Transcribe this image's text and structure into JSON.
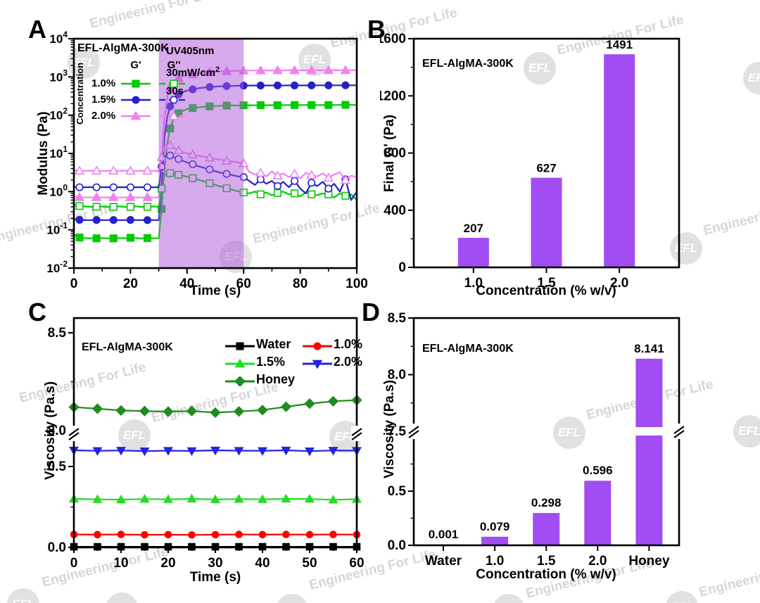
{
  "panel_letters": [
    "A",
    "B",
    "C",
    "D"
  ],
  "watermark": {
    "logo": "EFL",
    "text": "Engineering For Life"
  },
  "chart_data": [
    {
      "id": "A",
      "type": "line",
      "annotation": "EFL-AlgMA-300K",
      "xlabel": "Time (s)",
      "ylabel": "Modulus (Pa)",
      "xlim": [
        0,
        100
      ],
      "xticks": [
        0,
        20,
        40,
        60,
        80,
        100
      ],
      "ylog_exponents": [
        -2,
        -1,
        0,
        1,
        2,
        3,
        4
      ],
      "uv_region": {
        "x0": 30,
        "x1": 60,
        "color": "#AE55D9",
        "lines": [
          "UV405nm",
          "30mW/cm",
          "30s"
        ],
        "sup": "2"
      },
      "legend": {
        "conc_label": "Concentration",
        "col1": "G'",
        "col2": "G''",
        "rows": [
          {
            "label": "1.0%",
            "color": "#00CC00",
            "marker": "square"
          },
          {
            "label": "1.5%",
            "color": "#2222CC",
            "marker": "circle"
          },
          {
            "label": "2.0%",
            "color": "#EE82EE",
            "marker": "triangle"
          }
        ]
      },
      "t": [
        0,
        2,
        4,
        6,
        8,
        10,
        12,
        14,
        16,
        18,
        20,
        22,
        24,
        26,
        28,
        30,
        31,
        32,
        33,
        34,
        35,
        36,
        37,
        38,
        40,
        42,
        44,
        46,
        48,
        50,
        52,
        54,
        56,
        58,
        60,
        62,
        64,
        66,
        68,
        70,
        72,
        74,
        76,
        78,
        80,
        82,
        84,
        86,
        88,
        90,
        92,
        94,
        96,
        98,
        100
      ],
      "series": [
        {
          "name": "G' 1.0%",
          "color": "#00CC00",
          "marker": "square",
          "open": false,
          "v": [
            0.075,
            0.063,
            0.061,
            0.06,
            0.06,
            0.061,
            0.06,
            0.06,
            0.061,
            0.06,
            0.062,
            0.061,
            0.06,
            0.061,
            0.06,
            0.06,
            0.35,
            4,
            18,
            45,
            72,
            95,
            112,
            126,
            143,
            153,
            160,
            166,
            170,
            173,
            176,
            178,
            179,
            180,
            181,
            182,
            181,
            183,
            182,
            183,
            182,
            184,
            183,
            184,
            183,
            185,
            184,
            184,
            185,
            184,
            185,
            185,
            186,
            185,
            185
          ]
        },
        {
          "name": "G' 1.5%",
          "color": "#2222CC",
          "marker": "circle",
          "open": false,
          "v": [
            0.19,
            0.183,
            0.18,
            0.18,
            0.181,
            0.18,
            0.18,
            0.181,
            0.18,
            0.18,
            0.182,
            0.18,
            0.181,
            0.18,
            0.18,
            0.18,
            1.2,
            25,
            90,
            170,
            240,
            300,
            350,
            390,
            440,
            475,
            505,
            525,
            545,
            558,
            568,
            576,
            583,
            588,
            592,
            595,
            597,
            596,
            598,
            597,
            599,
            598,
            600,
            599,
            601,
            600,
            601,
            602,
            601,
            603,
            602,
            603,
            604,
            603,
            604
          ]
        },
        {
          "name": "G' 2.0%",
          "color": "#EE82EE",
          "marker": "triangle",
          "open": false,
          "v": [
            0.75,
            0.71,
            0.7,
            0.7,
            0.71,
            0.7,
            0.7,
            0.71,
            0.7,
            0.7,
            0.71,
            0.7,
            0.7,
            0.71,
            0.7,
            0.7,
            4,
            80,
            300,
            520,
            700,
            830,
            930,
            1000,
            1100,
            1170,
            1230,
            1280,
            1320,
            1355,
            1385,
            1410,
            1430,
            1448,
            1460,
            1468,
            1472,
            1476,
            1480,
            1478,
            1484,
            1482,
            1488,
            1486,
            1490,
            1488,
            1492,
            1490,
            1494,
            1492,
            1495,
            1493,
            1496,
            1494,
            1496
          ]
        },
        {
          "name": "G'' 1.0%",
          "color": "#00CC00",
          "marker": "square",
          "open": true,
          "v": [
            0.45,
            0.42,
            0.41,
            0.4,
            0.4,
            0.41,
            0.4,
            0.4,
            0.41,
            0.4,
            0.4,
            0.41,
            0.4,
            0.4,
            0.41,
            0.4,
            1.2,
            2.6,
            3.1,
            3.05,
            2.95,
            2.85,
            2.75,
            2.65,
            2.45,
            2.25,
            2.05,
            1.85,
            1.65,
            1.5,
            1.35,
            1.22,
            1.12,
            1.02,
            0.95,
            0.9,
            1.0,
            0.85,
            0.95,
            0.8,
            0.92,
            1.0,
            0.85,
            0.9,
            0.75,
            0.95,
            0.85,
            0.8,
            0.9,
            0.85,
            0.7,
            0.9,
            0.78,
            0.85,
            0.6
          ]
        },
        {
          "name": "G'' 1.5%",
          "color": "#2222CC",
          "marker": "circle",
          "open": true,
          "v": [
            1.32,
            1.3,
            1.3,
            1.31,
            1.3,
            1.3,
            1.31,
            1.3,
            1.3,
            1.31,
            1.3,
            1.3,
            1.31,
            1.3,
            1.3,
            1.3,
            4.5,
            8.2,
            9.2,
            8.8,
            8.2,
            7.6,
            7.1,
            6.6,
            5.8,
            5.2,
            4.6,
            4.2,
            3.8,
            3.4,
            3.1,
            2.9,
            2.7,
            2.5,
            2.4,
            1.9,
            1.5,
            2.1,
            1.6,
            1.9,
            1.4,
            1.8,
            1.3,
            1.9,
            1.2,
            0.9,
            1.7,
            1.4,
            1.8,
            1.2,
            1.6,
            1.0,
            2.1,
            0.6,
            1.0
          ]
        },
        {
          "name": "G'' 2.0%",
          "color": "#EE82EE",
          "marker": "triangle",
          "open": true,
          "v": [
            3.6,
            3.5,
            3.5,
            3.52,
            3.5,
            3.5,
            3.51,
            3.5,
            3.5,
            3.52,
            3.5,
            3.5,
            3.51,
            3.5,
            3.5,
            3.5,
            8,
            15,
            17.5,
            16.5,
            14.5,
            13,
            12,
            11,
            10,
            9.3,
            8.7,
            8.2,
            7.7,
            7.2,
            6.8,
            6.4,
            6.1,
            5.8,
            5.5,
            3.3,
            2.8,
            3.1,
            2.5,
            3.4,
            2.6,
            3.0,
            2.4,
            2.9,
            2.2,
            3.1,
            2.7,
            2.5,
            3.0,
            2.3,
            2.8,
            3.2,
            2.0,
            2.6,
            2.4
          ]
        }
      ]
    },
    {
      "id": "B",
      "type": "bar",
      "annotation": "EFL-AlgMA-300K",
      "xlabel": "Concentration (% w/v)",
      "ylabel": "Final G' (Pa)",
      "categories": [
        "1.0",
        "1.5",
        "2.0"
      ],
      "values": [
        207,
        627,
        1491
      ],
      "labels": [
        "207",
        "627",
        "1491"
      ],
      "ylim": [
        0,
        1600
      ],
      "yticks": [
        0,
        400,
        800,
        1200,
        1600
      ],
      "bar_color": "#A24DF3"
    },
    {
      "id": "C",
      "type": "line_broken_axis",
      "annotation": "EFL-AlgMA-300K",
      "xlabel": "Time (s)",
      "ylabel": "Viscosity (Pa.s)",
      "xlim": [
        0,
        60
      ],
      "xticks": [
        0,
        10,
        20,
        30,
        40,
        50,
        60
      ],
      "axis_break": {
        "lower_ticks": [
          "0.0",
          "0.5"
        ],
        "upper_ticks": [
          "8.0",
          "8.5"
        ]
      },
      "t": [
        0,
        5,
        10,
        15,
        20,
        25,
        30,
        35,
        40,
        45,
        50,
        55,
        60
      ],
      "series": [
        {
          "name": "Water",
          "color": "#000000",
          "marker": "square",
          "axis": "lower",
          "v": [
            0.004,
            0.004,
            0.004,
            0.004,
            0.004,
            0.004,
            0.004,
            0.004,
            0.004,
            0.004,
            0.004,
            0.004,
            0.004
          ]
        },
        {
          "name": "1.0%",
          "color": "#FF0000",
          "marker": "circle",
          "axis": "lower",
          "v": [
            0.08,
            0.079,
            0.08,
            0.078,
            0.079,
            0.077,
            0.079,
            0.08,
            0.079,
            0.08,
            0.079,
            0.08,
            0.079
          ]
        },
        {
          "name": "1.5%",
          "color": "#22DD22",
          "marker": "triangle",
          "axis": "lower",
          "v": [
            0.3,
            0.297,
            0.295,
            0.299,
            0.297,
            0.3,
            0.296,
            0.299,
            0.297,
            0.3,
            0.299,
            0.294,
            0.298
          ]
        },
        {
          "name": "2.0%",
          "color": "#2222E6",
          "marker": "triangle-down",
          "axis": "lower",
          "v": [
            0.6,
            0.597,
            0.599,
            0.595,
            0.598,
            0.596,
            0.6,
            0.598,
            0.597,
            0.6,
            0.595,
            0.599,
            0.598
          ]
        },
        {
          "name": "Honey",
          "color": "#1E8C1E",
          "marker": "diamond",
          "axis": "upper",
          "v": [
            8.12,
            8.112,
            8.103,
            8.1,
            8.097,
            8.1,
            8.092,
            8.098,
            8.105,
            8.122,
            8.138,
            8.15,
            8.156
          ]
        }
      ]
    },
    {
      "id": "D",
      "type": "bar_broken_axis",
      "annotation": "EFL-AlgMA-300K",
      "xlabel": "Concentration (% w/v)",
      "ylabel": "Viscosity (Pa.s)",
      "categories": [
        "Water",
        "1.0",
        "1.5",
        "2.0",
        "Honey"
      ],
      "values": [
        0.001,
        0.079,
        0.298,
        0.596,
        8.141
      ],
      "labels": [
        "0.001",
        "0.079",
        "0.298",
        "0.596",
        "8.141"
      ],
      "axis_break": {
        "lower_ticks": [
          "0.0",
          "0.5"
        ],
        "upper_ticks": [
          "7.5",
          "8.0",
          "8.5"
        ]
      },
      "bar_color": "#A24DF3"
    }
  ]
}
